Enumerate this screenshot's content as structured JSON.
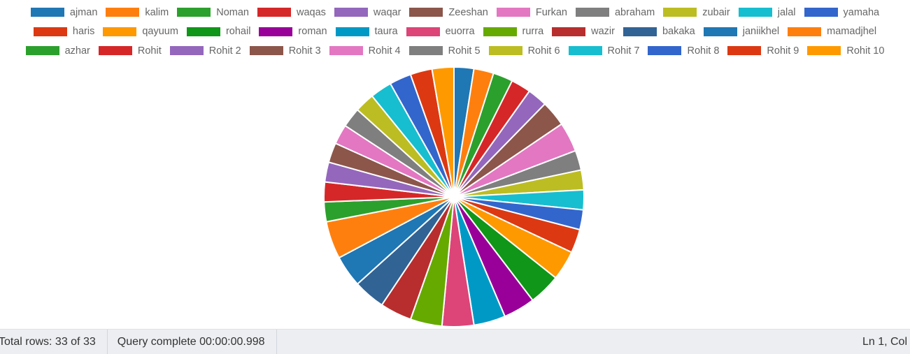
{
  "chart_data": {
    "type": "pie",
    "title": "",
    "legend_position": "top",
    "slices": [
      {
        "label": "ajman",
        "value": 1,
        "color": "#1f77b4"
      },
      {
        "label": "kalim",
        "value": 1,
        "color": "#ff7f0e"
      },
      {
        "label": "Noman",
        "value": 1,
        "color": "#2ca02c"
      },
      {
        "label": "waqas",
        "value": 1,
        "color": "#d62728"
      },
      {
        "label": "waqar",
        "value": 1,
        "color": "#9467bd"
      },
      {
        "label": "Zeeshan",
        "value": 1.3,
        "color": "#8c564b"
      },
      {
        "label": "Furkan",
        "value": 1.5,
        "color": "#e377c2"
      },
      {
        "label": "abraham",
        "value": 1,
        "color": "#7f7f7f"
      },
      {
        "label": "zubair",
        "value": 1,
        "color": "#bcbd22"
      },
      {
        "label": "jalal",
        "value": 1,
        "color": "#17becf"
      },
      {
        "label": "yamaha",
        "value": 1,
        "color": "#3366cc"
      },
      {
        "label": "haris",
        "value": 1.2,
        "color": "#dc3912"
      },
      {
        "label": "qayuum",
        "value": 1.5,
        "color": "#ff9900"
      },
      {
        "label": "rohail",
        "value": 1.6,
        "color": "#109618"
      },
      {
        "label": "roman",
        "value": 1.6,
        "color": "#990099"
      },
      {
        "label": "taura",
        "value": 1.6,
        "color": "#0099c6"
      },
      {
        "label": "euorra",
        "value": 1.6,
        "color": "#dd4477"
      },
      {
        "label": "rurra",
        "value": 1.6,
        "color": "#66aa00"
      },
      {
        "label": "wazir",
        "value": 1.6,
        "color": "#b82e2e"
      },
      {
        "label": "bakaka",
        "value": 1.6,
        "color": "#316395"
      },
      {
        "label": "janiikhel",
        "value": 1.6,
        "color": "#1f77b4"
      },
      {
        "label": "mamadjhel",
        "value": 1.9,
        "color": "#ff7f0e"
      },
      {
        "label": "azhar",
        "value": 1,
        "color": "#2ca02c"
      },
      {
        "label": "Rohit",
        "value": 1,
        "color": "#d62728"
      },
      {
        "label": "Rohit 2",
        "value": 1,
        "color": "#9467bd"
      },
      {
        "label": "Rohit 3",
        "value": 1,
        "color": "#8c564b"
      },
      {
        "label": "Rohit 4",
        "value": 1,
        "color": "#e377c2"
      },
      {
        "label": "Rohit 5",
        "value": 1,
        "color": "#7f7f7f"
      },
      {
        "label": "Rohit 6",
        "value": 1,
        "color": "#bcbd22"
      },
      {
        "label": "Rohit 7",
        "value": 1.1,
        "color": "#17becf"
      },
      {
        "label": "Rohit 8",
        "value": 1.1,
        "color": "#3366cc"
      },
      {
        "label": "Rohit 9",
        "value": 1.1,
        "color": "#dc3912"
      },
      {
        "label": "Rohit 10",
        "value": 1.1,
        "color": "#ff9900"
      }
    ]
  },
  "status_bar": {
    "total_rows": "Total rows: 33 of 33",
    "query_status": "Query complete 00:00:00.998",
    "cursor_position": "Ln 1, Col"
  }
}
